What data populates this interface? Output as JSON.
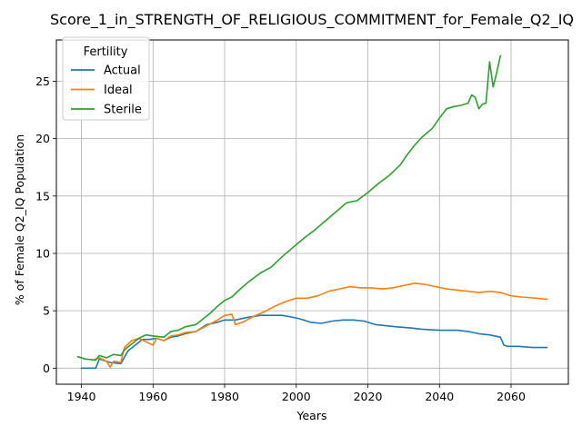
{
  "chart_data": {
    "type": "line",
    "title": "Score_1_in_STRENGTH_OF_RELIGIOUS_COMMITMENT_for_Female_Q2_IQ",
    "xlabel": "Years",
    "ylabel": "% of Female Q2_IQ Population",
    "xlim": [
      1933,
      2076
    ],
    "ylim": [
      -1.4,
      28.6
    ],
    "x_ticks": [
      1940,
      1960,
      1980,
      2000,
      2020,
      2040,
      2060
    ],
    "y_ticks": [
      0,
      5,
      10,
      15,
      20,
      25
    ],
    "grid": true,
    "legend": {
      "title": "Fertility",
      "placement": "top-left"
    },
    "series": [
      {
        "name": "Actual",
        "color": "#1f77b4",
        "points": [
          [
            1940,
            0.0
          ],
          [
            1944,
            0.0
          ],
          [
            1945,
            0.8
          ],
          [
            1948,
            0.5
          ],
          [
            1951,
            0.4
          ],
          [
            1953,
            1.5
          ],
          [
            1955,
            2.0
          ],
          [
            1957,
            2.5
          ],
          [
            1959,
            2.5
          ],
          [
            1961,
            2.6
          ],
          [
            1963,
            2.4
          ],
          [
            1965,
            2.7
          ],
          [
            1967,
            2.8
          ],
          [
            1969,
            3.0
          ],
          [
            1972,
            3.2
          ],
          [
            1975,
            3.8
          ],
          [
            1978,
            4.0
          ],
          [
            1980,
            4.2
          ],
          [
            1983,
            4.2
          ],
          [
            1986,
            4.4
          ],
          [
            1990,
            4.6
          ],
          [
            1993,
            4.6
          ],
          [
            1996,
            4.6
          ],
          [
            1998,
            4.5
          ],
          [
            2001,
            4.3
          ],
          [
            2004,
            4.0
          ],
          [
            2007,
            3.9
          ],
          [
            2010,
            4.1
          ],
          [
            2013,
            4.2
          ],
          [
            2016,
            4.2
          ],
          [
            2019,
            4.1
          ],
          [
            2022,
            3.8
          ],
          [
            2025,
            3.7
          ],
          [
            2028,
            3.6
          ],
          [
            2032,
            3.5
          ],
          [
            2035,
            3.4
          ],
          [
            2040,
            3.3
          ],
          [
            2045,
            3.3
          ],
          [
            2048,
            3.2
          ],
          [
            2051,
            3.0
          ],
          [
            2054,
            2.9
          ],
          [
            2057,
            2.7
          ],
          [
            2058,
            2.0
          ],
          [
            2059,
            1.9
          ],
          [
            2062,
            1.9
          ],
          [
            2066,
            1.8
          ],
          [
            2070,
            1.8
          ]
        ]
      },
      {
        "name": "Ideal",
        "color": "#ff7f0e",
        "points": [
          [
            1943,
            0.7
          ],
          [
            1945,
            0.9
          ],
          [
            1947,
            0.6
          ],
          [
            1948,
            0.1
          ],
          [
            1949,
            0.6
          ],
          [
            1951,
            0.5
          ],
          [
            1952,
            1.8
          ],
          [
            1954,
            2.4
          ],
          [
            1956,
            2.6
          ],
          [
            1958,
            2.3
          ],
          [
            1960,
            2.0
          ],
          [
            1961,
            2.6
          ],
          [
            1963,
            2.4
          ],
          [
            1965,
            2.8
          ],
          [
            1967,
            2.9
          ],
          [
            1969,
            3.1
          ],
          [
            1972,
            3.2
          ],
          [
            1975,
            3.7
          ],
          [
            1978,
            4.2
          ],
          [
            1980,
            4.6
          ],
          [
            1982,
            4.7
          ],
          [
            1983,
            3.8
          ],
          [
            1985,
            4.0
          ],
          [
            1988,
            4.5
          ],
          [
            1991,
            4.9
          ],
          [
            1994,
            5.4
          ],
          [
            1997,
            5.8
          ],
          [
            2000,
            6.1
          ],
          [
            2003,
            6.1
          ],
          [
            2006,
            6.3
          ],
          [
            2009,
            6.7
          ],
          [
            2012,
            6.9
          ],
          [
            2015,
            7.1
          ],
          [
            2018,
            7.0
          ],
          [
            2021,
            7.0
          ],
          [
            2024,
            6.9
          ],
          [
            2027,
            7.0
          ],
          [
            2030,
            7.2
          ],
          [
            2033,
            7.4
          ],
          [
            2036,
            7.3
          ],
          [
            2039,
            7.1
          ],
          [
            2042,
            6.9
          ],
          [
            2045,
            6.8
          ],
          [
            2048,
            6.7
          ],
          [
            2051,
            6.6
          ],
          [
            2054,
            6.7
          ],
          [
            2057,
            6.6
          ],
          [
            2060,
            6.3
          ],
          [
            2063,
            6.2
          ],
          [
            2067,
            6.1
          ],
          [
            2070,
            6.0
          ]
        ]
      },
      {
        "name": "Sterile",
        "color": "#2ca02c",
        "points": [
          [
            1939,
            1.0
          ],
          [
            1941,
            0.8
          ],
          [
            1944,
            0.7
          ],
          [
            1945,
            1.1
          ],
          [
            1947,
            0.9
          ],
          [
            1949,
            1.2
          ],
          [
            1951,
            1.1
          ],
          [
            1952,
            1.6
          ],
          [
            1954,
            2.1
          ],
          [
            1956,
            2.6
          ],
          [
            1958,
            2.9
          ],
          [
            1960,
            2.8
          ],
          [
            1963,
            2.7
          ],
          [
            1965,
            3.2
          ],
          [
            1967,
            3.3
          ],
          [
            1969,
            3.6
          ],
          [
            1972,
            3.8
          ],
          [
            1974,
            4.3
          ],
          [
            1976,
            4.8
          ],
          [
            1978,
            5.4
          ],
          [
            1980,
            5.9
          ],
          [
            1982,
            6.2
          ],
          [
            1984,
            6.8
          ],
          [
            1987,
            7.6
          ],
          [
            1990,
            8.3
          ],
          [
            1993,
            8.8
          ],
          [
            1996,
            9.7
          ],
          [
            1999,
            10.5
          ],
          [
            2002,
            11.3
          ],
          [
            2005,
            12.0
          ],
          [
            2008,
            12.8
          ],
          [
            2011,
            13.6
          ],
          [
            2014,
            14.4
          ],
          [
            2017,
            14.6
          ],
          [
            2020,
            15.3
          ],
          [
            2023,
            16.1
          ],
          [
            2026,
            16.8
          ],
          [
            2029,
            17.7
          ],
          [
            2031,
            18.6
          ],
          [
            2033,
            19.4
          ],
          [
            2035,
            20.1
          ],
          [
            2038,
            20.9
          ],
          [
            2040,
            21.8
          ],
          [
            2042,
            22.6
          ],
          [
            2044,
            22.8
          ],
          [
            2046,
            22.9
          ],
          [
            2048,
            23.1
          ],
          [
            2049,
            23.8
          ],
          [
            2050,
            23.6
          ],
          [
            2051,
            22.6
          ],
          [
            2052,
            23.0
          ],
          [
            2053,
            23.1
          ],
          [
            2054,
            26.7
          ],
          [
            2055,
            24.5
          ],
          [
            2056,
            25.8
          ],
          [
            2057,
            27.2
          ]
        ]
      }
    ]
  }
}
